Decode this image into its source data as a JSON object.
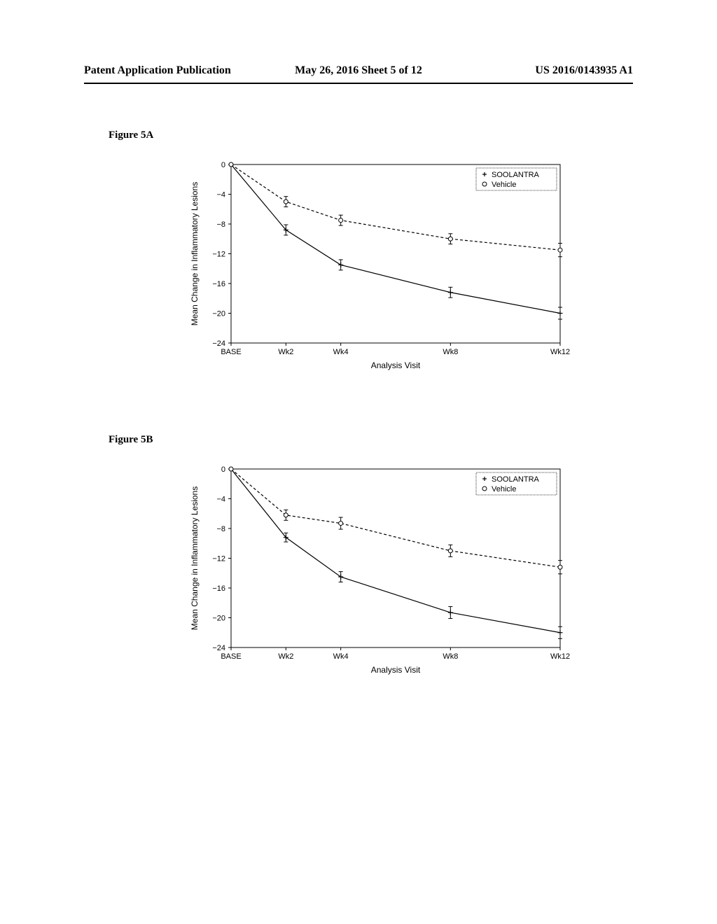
{
  "header": {
    "left": "Patent Application Publication",
    "center": "May 26, 2016  Sheet 5 of 12",
    "right": "US 2016/0143935 A1"
  },
  "figure_a": {
    "label": "Figure 5A",
    "chart": {
      "type": "line",
      "ylabel": "Mean Change in Inflammatory Lesions",
      "xlabel": "Analysis Visit",
      "categories": [
        "BASE",
        "Wk2",
        "Wk4",
        "Wk8",
        "Wk12"
      ],
      "x_positions": [
        0,
        2,
        4,
        8,
        12
      ],
      "ylim": [
        -24,
        0
      ],
      "ytick_step": 4,
      "yticks": [
        0,
        -4,
        -8,
        -12,
        -16,
        -20,
        -24
      ],
      "series": [
        {
          "name": "SOOLANTRA",
          "marker": "plus",
          "line_style": "solid",
          "values": [
            0,
            -8.8,
            -13.5,
            -17.2,
            -20.0
          ],
          "errors": [
            0,
            0.7,
            0.7,
            0.7,
            0.8
          ]
        },
        {
          "name": "Vehicle",
          "marker": "circle",
          "line_style": "dashed",
          "values": [
            0,
            -5.0,
            -7.5,
            -10.0,
            -11.5
          ],
          "errors": [
            0,
            0.7,
            0.7,
            0.7,
            0.9
          ]
        }
      ],
      "legend": {
        "items": [
          "SOOLANTRA",
          "Vehicle"
        ]
      },
      "background_color": "#ffffff",
      "line_color": "#000000"
    }
  },
  "figure_b": {
    "label": "Figure 5B",
    "chart": {
      "type": "line",
      "ylabel": "Mean Change in Inflammatory Lesions",
      "xlabel": "Analysis Visit",
      "categories": [
        "BASE",
        "Wk2",
        "Wk4",
        "Wk8",
        "Wk12"
      ],
      "x_positions": [
        0,
        2,
        4,
        8,
        12
      ],
      "ylim": [
        -24,
        0
      ],
      "ytick_step": 4,
      "yticks": [
        0,
        -4,
        -8,
        -12,
        -16,
        -20,
        -24
      ],
      "series": [
        {
          "name": "SOOLANTRA",
          "marker": "plus",
          "line_style": "solid",
          "values": [
            0,
            -9.2,
            -14.5,
            -19.3,
            -22.0
          ],
          "errors": [
            0,
            0.6,
            0.7,
            0.8,
            0.8
          ]
        },
        {
          "name": "Vehicle",
          "marker": "circle",
          "line_style": "dashed",
          "values": [
            0,
            -6.2,
            -7.3,
            -11.0,
            -13.2
          ],
          "errors": [
            0,
            0.7,
            0.8,
            0.8,
            0.9
          ]
        }
      ],
      "legend": {
        "items": [
          "SOOLANTRA",
          "Vehicle"
        ]
      },
      "background_color": "#ffffff",
      "line_color": "#000000"
    }
  }
}
